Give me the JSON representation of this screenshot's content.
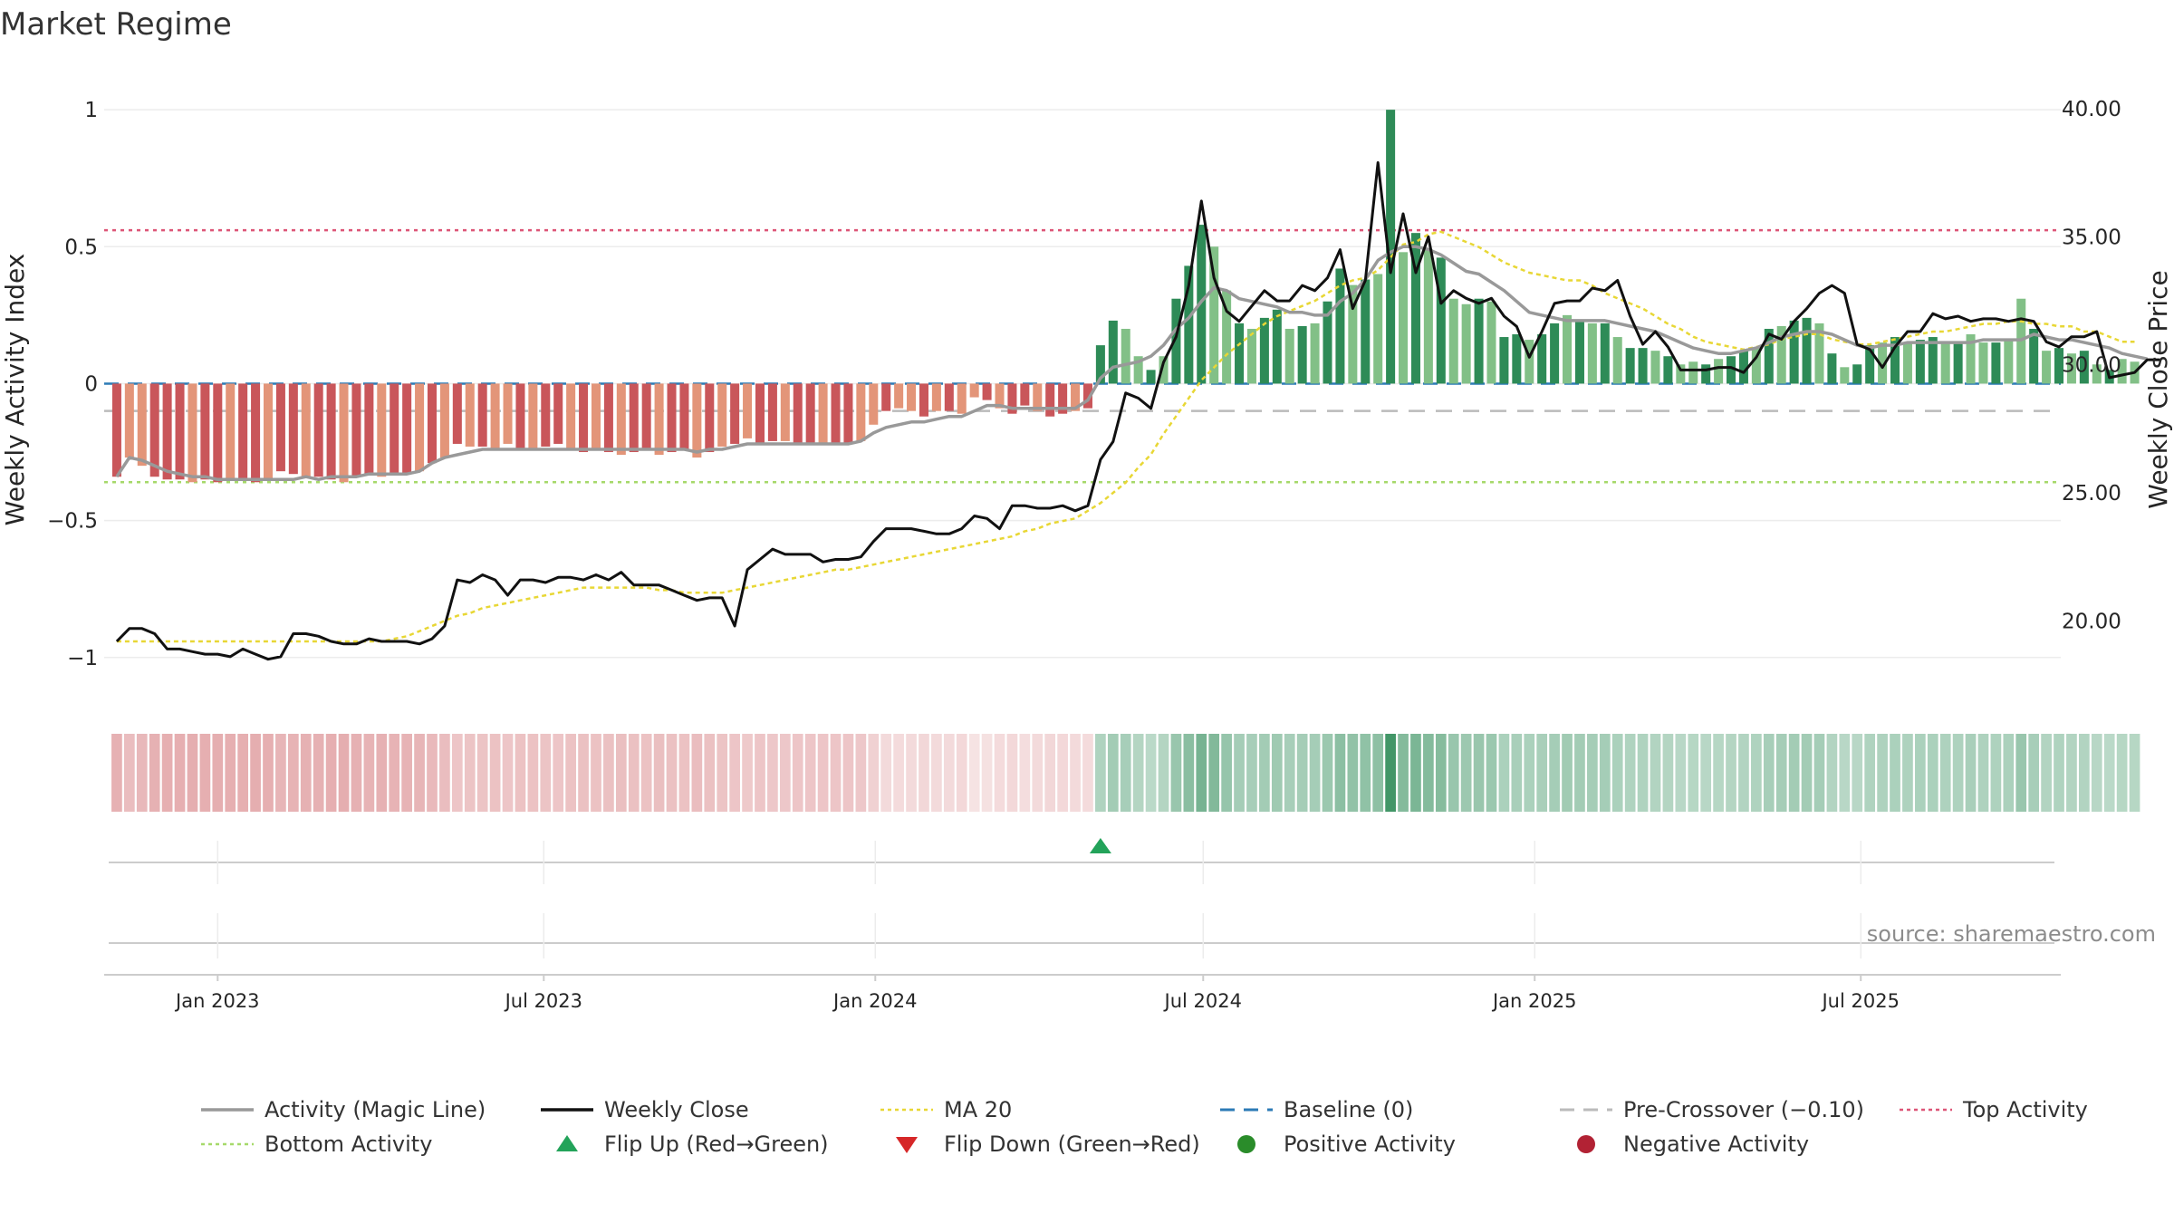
{
  "colors": {
    "neg_strong": "#c9565a",
    "neg_weak": "#e39579",
    "pos_strong": "#2e8b57",
    "pos_weak": "#82c087",
    "weekly_close": "#111111",
    "magic_line": "#999999",
    "ma20": "#e8d735",
    "baseline": "#2c7bb6",
    "pre_crossover": "#bbbbbb",
    "top_activity": "#dd5577",
    "bottom_activity": "#a6d96a",
    "flip_up": "#23a35a",
    "flip_down": "#d62728",
    "positive_dot": "#2a8c2a",
    "negative_dot": "#b22234"
  },
  "chart_data": {
    "type": "bar",
    "title": "Market Regime",
    "source": "source: sharemaestro.com",
    "left_axis": {
      "label": "Weekly Activity Index",
      "ylim": [
        -1.1,
        1.05
      ],
      "ticks": [
        "1",
        "0.5",
        "0",
        "−0.5",
        "−1"
      ],
      "tick_values": [
        1,
        0.5,
        0,
        -0.5,
        -1
      ]
    },
    "right_axis": {
      "label": "Weekly Close Price",
      "ylim": [
        17.5,
        40.5
      ],
      "ticks": [
        "40.00",
        "35.00",
        "30.00",
        "25.00",
        "20.00"
      ],
      "tick_values": [
        40,
        35,
        30,
        25,
        20
      ]
    },
    "x_axis": {
      "type": "date",
      "ticks": [
        "Jan 2023",
        "Jul 2023",
        "Jan 2024",
        "Jul 2024",
        "Jan 2025",
        "Jul 2025"
      ],
      "tick_dates": [
        "2023-01-01",
        "2023-07-01",
        "2024-01-01",
        "2024-07-01",
        "2025-01-01",
        "2025-07-01"
      ],
      "range": [
        "2022-10-30",
        "2025-10-20"
      ]
    },
    "reference_lines": {
      "top_activity": 0.56,
      "bottom_activity": -0.36,
      "pre_crossover": -0.1,
      "baseline": 0
    },
    "start_week": "2022-11-06",
    "activity": [
      -0.34,
      -0.27,
      -0.3,
      -0.34,
      -0.35,
      -0.35,
      -0.36,
      -0.35,
      -0.36,
      -0.35,
      -0.35,
      -0.36,
      -0.35,
      -0.32,
      -0.33,
      -0.34,
      -0.34,
      -0.35,
      -0.36,
      -0.34,
      -0.33,
      -0.34,
      -0.33,
      -0.33,
      -0.32,
      -0.29,
      -0.27,
      -0.22,
      -0.23,
      -0.23,
      -0.24,
      -0.22,
      -0.24,
      -0.24,
      -0.23,
      -0.22,
      -0.24,
      -0.25,
      -0.24,
      -0.25,
      -0.26,
      -0.25,
      -0.24,
      -0.26,
      -0.25,
      -0.24,
      -0.27,
      -0.25,
      -0.23,
      -0.22,
      -0.2,
      -0.22,
      -0.21,
      -0.21,
      -0.22,
      -0.22,
      -0.22,
      -0.22,
      -0.22,
      -0.21,
      -0.15,
      -0.1,
      -0.09,
      -0.1,
      -0.12,
      -0.1,
      -0.1,
      -0.11,
      -0.05,
      -0.06,
      -0.09,
      -0.11,
      -0.08,
      -0.1,
      -0.12,
      -0.11,
      -0.1,
      -0.09,
      0.14,
      0.23,
      0.2,
      0.1,
      0.05,
      0.1,
      0.31,
      0.43,
      0.58,
      0.5,
      0.34,
      0.22,
      0.2,
      0.24,
      0.27,
      0.2,
      0.21,
      0.22,
      0.3,
      0.42,
      0.36,
      0.38,
      0.4,
      1.0,
      0.48,
      0.55,
      0.49,
      0.46,
      0.31,
      0.29,
      0.31,
      0.3,
      0.17,
      0.18,
      0.16,
      0.18,
      0.22,
      0.25,
      0.23,
      0.22,
      0.22,
      0.17,
      0.13,
      0.13,
      0.12,
      0.1,
      0.07,
      0.08,
      0.07,
      0.09,
      0.1,
      0.12,
      0.13,
      0.2,
      0.21,
      0.23,
      0.24,
      0.22,
      0.11,
      0.06,
      0.07,
      0.14,
      0.15,
      0.17,
      0.15,
      0.16,
      0.17,
      0.15,
      0.15,
      0.18,
      0.15,
      0.15,
      0.16,
      0.31,
      0.2,
      0.12,
      0.13,
      0.11,
      0.12,
      0.07,
      0.05,
      0.09,
      0.08
    ],
    "activity_strength": [
      1,
      0,
      0,
      1,
      1,
      1,
      0,
      1,
      1,
      0,
      1,
      1,
      0,
      1,
      1,
      0,
      1,
      1,
      0,
      1,
      1,
      0,
      1,
      1,
      0,
      1,
      0,
      1,
      0,
      1,
      0,
      0,
      1,
      0,
      1,
      1,
      0,
      1,
      0,
      1,
      0,
      1,
      1,
      0,
      1,
      1,
      0,
      1,
      0,
      1,
      0,
      1,
      1,
      0,
      1,
      1,
      0,
      1,
      1,
      0,
      0,
      1,
      0,
      0,
      1,
      0,
      1,
      0,
      0,
      1,
      0,
      1,
      1,
      0,
      1,
      1,
      0,
      1,
      1,
      1,
      0,
      0,
      1,
      0,
      1,
      1,
      1,
      0,
      0,
      1,
      0,
      1,
      1,
      0,
      1,
      0,
      1,
      1,
      0,
      1,
      0,
      1,
      0,
      1,
      0,
      1,
      0,
      0,
      1,
      0,
      1,
      1,
      0,
      1,
      1,
      0,
      1,
      0,
      1,
      0,
      1,
      1,
      0,
      1,
      0,
      0,
      1,
      0,
      1,
      1,
      0,
      1,
      0,
      1,
      1,
      0,
      1,
      0,
      1,
      1,
      0,
      1,
      0,
      1,
      1,
      0,
      1,
      0,
      0,
      1,
      0,
      0,
      1,
      0,
      1,
      0,
      1,
      0,
      1,
      0
    ],
    "magic_line": [
      -0.34,
      -0.27,
      -0.28,
      -0.3,
      -0.32,
      -0.33,
      -0.34,
      -0.34,
      -0.35,
      -0.35,
      -0.35,
      -0.35,
      -0.35,
      -0.35,
      -0.35,
      -0.34,
      -0.35,
      -0.34,
      -0.34,
      -0.34,
      -0.33,
      -0.33,
      -0.33,
      -0.33,
      -0.32,
      -0.29,
      -0.27,
      -0.26,
      -0.25,
      -0.24,
      -0.24,
      -0.24,
      -0.24,
      -0.24,
      -0.24,
      -0.24,
      -0.24,
      -0.24,
      -0.24,
      -0.24,
      -0.24,
      -0.24,
      -0.24,
      -0.24,
      -0.24,
      -0.24,
      -0.25,
      -0.24,
      -0.24,
      -0.23,
      -0.22,
      -0.22,
      -0.22,
      -0.22,
      -0.22,
      -0.22,
      -0.22,
      -0.22,
      -0.22,
      -0.21,
      -0.18,
      -0.16,
      -0.15,
      -0.14,
      -0.14,
      -0.13,
      -0.12,
      -0.12,
      -0.1,
      -0.08,
      -0.08,
      -0.09,
      -0.09,
      -0.09,
      -0.09,
      -0.09,
      -0.09,
      -0.06,
      0.02,
      0.06,
      0.07,
      0.08,
      0.1,
      0.14,
      0.2,
      0.24,
      0.3,
      0.35,
      0.34,
      0.31,
      0.3,
      0.29,
      0.28,
      0.26,
      0.26,
      0.25,
      0.25,
      0.3,
      0.33,
      0.38,
      0.45,
      0.48,
      0.5,
      0.5,
      0.49,
      0.47,
      0.44,
      0.41,
      0.4,
      0.37,
      0.34,
      0.3,
      0.26,
      0.25,
      0.24,
      0.23,
      0.23,
      0.23,
      0.23,
      0.22,
      0.21,
      0.2,
      0.19,
      0.17,
      0.15,
      0.13,
      0.12,
      0.11,
      0.11,
      0.12,
      0.13,
      0.15,
      0.17,
      0.18,
      0.19,
      0.19,
      0.18,
      0.16,
      0.14,
      0.13,
      0.14,
      0.14,
      0.15,
      0.15,
      0.15,
      0.15,
      0.15,
      0.15,
      0.16,
      0.16,
      0.16,
      0.16,
      0.18,
      0.17,
      0.16,
      0.16,
      0.15,
      0.14,
      0.13,
      0.11,
      0.1,
      0.09
    ],
    "weekly_close": [
      19.2,
      19.7,
      19.7,
      19.5,
      18.9,
      18.9,
      18.8,
      18.7,
      18.7,
      18.6,
      18.9,
      18.7,
      18.5,
      18.6,
      19.5,
      19.5,
      19.4,
      19.2,
      19.1,
      19.1,
      19.3,
      19.2,
      19.2,
      19.2,
      19.1,
      19.3,
      19.8,
      21.6,
      21.5,
      21.8,
      21.6,
      21.0,
      21.6,
      21.6,
      21.5,
      21.7,
      21.7,
      21.6,
      21.8,
      21.6,
      21.9,
      21.4,
      21.4,
      21.4,
      21.2,
      21.0,
      20.8,
      20.9,
      20.9,
      19.8,
      22.0,
      22.4,
      22.8,
      22.6,
      22.6,
      22.6,
      22.3,
      22.4,
      22.4,
      22.5,
      23.1,
      23.6,
      23.6,
      23.6,
      23.5,
      23.4,
      23.4,
      23.6,
      24.1,
      24.0,
      23.6,
      24.5,
      24.5,
      24.4,
      24.4,
      24.5,
      24.3,
      24.5,
      26.3,
      27.0,
      28.9,
      28.7,
      28.3,
      30.1,
      31.1,
      33.1,
      36.4,
      33.4,
      32.1,
      31.7,
      32.3,
      32.9,
      32.5,
      32.5,
      33.1,
      32.9,
      33.4,
      34.5,
      32.2,
      33.3,
      37.9,
      33.6,
      35.9,
      33.6,
      35.0,
      32.4,
      32.9,
      32.6,
      32.4,
      32.6,
      31.9,
      31.5,
      30.3,
      31.3,
      32.4,
      32.5,
      32.5,
      33.0,
      32.9,
      33.3,
      31.9,
      30.8,
      31.3,
      30.7,
      29.8,
      29.8,
      29.8,
      29.9,
      29.9,
      29.7,
      30.3,
      31.2,
      31.0,
      31.7,
      32.2,
      32.8,
      33.1,
      32.8,
      30.8,
      30.6,
      29.9,
      30.7,
      31.3,
      31.3,
      32.0,
      31.8,
      31.9,
      31.7,
      31.8,
      31.8,
      31.7,
      31.8,
      31.7,
      30.9,
      30.7,
      31.1,
      31.1,
      31.3,
      29.5,
      29.6,
      29.7,
      30.2,
      30.2
    ],
    "ma20": [
      19.2,
      19.2,
      19.2,
      19.2,
      19.2,
      19.2,
      19.2,
      19.2,
      19.2,
      19.2,
      19.2,
      19.2,
      19.2,
      19.2,
      19.2,
      19.2,
      19.2,
      19.2,
      19.2,
      19.2,
      19.2,
      19.2,
      19.3,
      19.4,
      19.6,
      19.8,
      20.0,
      20.2,
      20.3,
      20.5,
      20.6,
      20.7,
      20.8,
      20.9,
      21.0,
      21.1,
      21.2,
      21.3,
      21.3,
      21.3,
      21.3,
      21.3,
      21.3,
      21.2,
      21.2,
      21.1,
      21.1,
      21.1,
      21.1,
      21.2,
      21.3,
      21.4,
      21.5,
      21.6,
      21.7,
      21.8,
      21.9,
      22.0,
      22.0,
      22.1,
      22.2,
      22.3,
      22.4,
      22.5,
      22.6,
      22.7,
      22.8,
      22.9,
      23.0,
      23.1,
      23.2,
      23.3,
      23.5,
      23.6,
      23.8,
      23.9,
      24.0,
      24.3,
      24.6,
      25.0,
      25.4,
      26.0,
      26.5,
      27.3,
      28.0,
      28.7,
      29.4,
      29.9,
      30.4,
      30.8,
      31.2,
      31.6,
      31.9,
      32.1,
      32.3,
      32.5,
      32.8,
      33.1,
      33.3,
      33.4,
      33.7,
      34.2,
      34.7,
      34.8,
      35.1,
      35.2,
      35.0,
      34.8,
      34.6,
      34.3,
      34.0,
      33.8,
      33.6,
      33.5,
      33.4,
      33.3,
      33.3,
      33.1,
      32.8,
      32.6,
      32.4,
      32.2,
      31.9,
      31.6,
      31.4,
      31.1,
      30.9,
      30.8,
      30.7,
      30.6,
      30.7,
      30.8,
      31.0,
      31.1,
      31.2,
      31.2,
      31.0,
      30.9,
      30.8,
      30.8,
      30.9,
      31.0,
      31.1,
      31.2,
      31.3,
      31.3,
      31.4,
      31.5,
      31.6,
      31.6,
      31.7,
      31.7,
      31.6,
      31.6,
      31.5,
      31.5,
      31.3,
      31.3,
      31.1,
      30.9,
      30.9
    ],
    "flip_up_week": 78,
    "legend": [
      {
        "label": "Activity (Magic Line)",
        "symbol": "line"
      },
      {
        "label": "Weekly Close",
        "symbol": "line"
      },
      {
        "label": "MA 20",
        "symbol": "dotted"
      },
      {
        "label": "Baseline (0)",
        "symbol": "dashed"
      },
      {
        "label": "Pre-Crossover (−0.10)",
        "symbol": "dashed"
      },
      {
        "label": "Top Activity",
        "symbol": "dotted"
      },
      {
        "label": "Bottom Activity",
        "symbol": "dotted"
      },
      {
        "label": "Flip Up (Red→Green)",
        "symbol": "triangle-up"
      },
      {
        "label": "Flip Down (Green→Red)",
        "symbol": "triangle-down"
      },
      {
        "label": "Positive Activity",
        "symbol": "dot"
      },
      {
        "label": "Negative Activity",
        "symbol": "dot"
      }
    ]
  }
}
